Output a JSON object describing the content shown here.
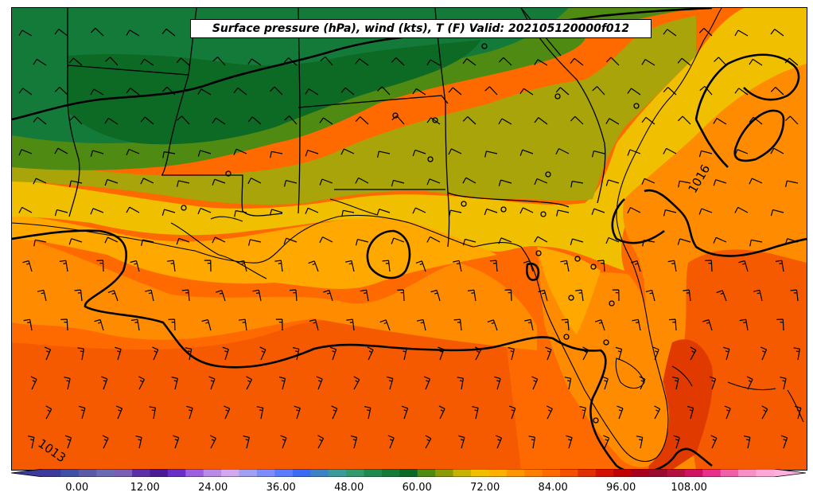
{
  "title": "Surface pressure (hPa), wind (kts), T (F) Valid: 202105120000f012",
  "isobar_labels": [
    "1016",
    "1013"
  ],
  "colorbar": {
    "tick_labels": [
      "0.00",
      "12.00",
      "24.00",
      "36.00",
      "48.00",
      "60.00",
      "72.00",
      "84.00",
      "96.00",
      "108.00"
    ],
    "tick_values": [
      0,
      12,
      24,
      36,
      48,
      60,
      72,
      84,
      96,
      108
    ],
    "min": -6,
    "max": 123,
    "step": 3,
    "colors": [
      "#3b3b9b",
      "#3f4fa6",
      "#5a5aa8",
      "#6b6bb4",
      "#7b5fb5",
      "#5b2fa8",
      "#4b1a9b",
      "#6a2fc9",
      "#9b5fe0",
      "#b98ae8",
      "#d2a8f0",
      "#a0a0f5",
      "#7d8cff",
      "#5a7dff",
      "#3b6bf5",
      "#3b82c8",
      "#3b9b9b",
      "#2f9b6b",
      "#1f8a4f",
      "#147a3a",
      "#0a6a25",
      "#4f8a12",
      "#8a9b0a",
      "#c8b400",
      "#f0c000",
      "#ffb000",
      "#ff9800",
      "#ff8000",
      "#ff6a00",
      "#f55000",
      "#e03000",
      "#d41000",
      "#c00000",
      "#a8001f",
      "#9b0a2f",
      "#b4103f",
      "#d01060",
      "#e82f8a",
      "#f060a8",
      "#f890c8",
      "#ffa8d8"
    ],
    "extend_low_color": "#3b3b9b",
    "extend_high_color": "#ffb0e0"
  },
  "fill_colors": {
    "dark_green": "#0d6a25",
    "green": "#147a3a",
    "olive_green": "#4f8a12",
    "olive": "#a8a40a",
    "yellow": "#f0c000",
    "orange_light": "#ffa800",
    "orange": "#ff8c00",
    "orange_deep": "#ff6a00",
    "red_orange": "#f55000"
  }
}
